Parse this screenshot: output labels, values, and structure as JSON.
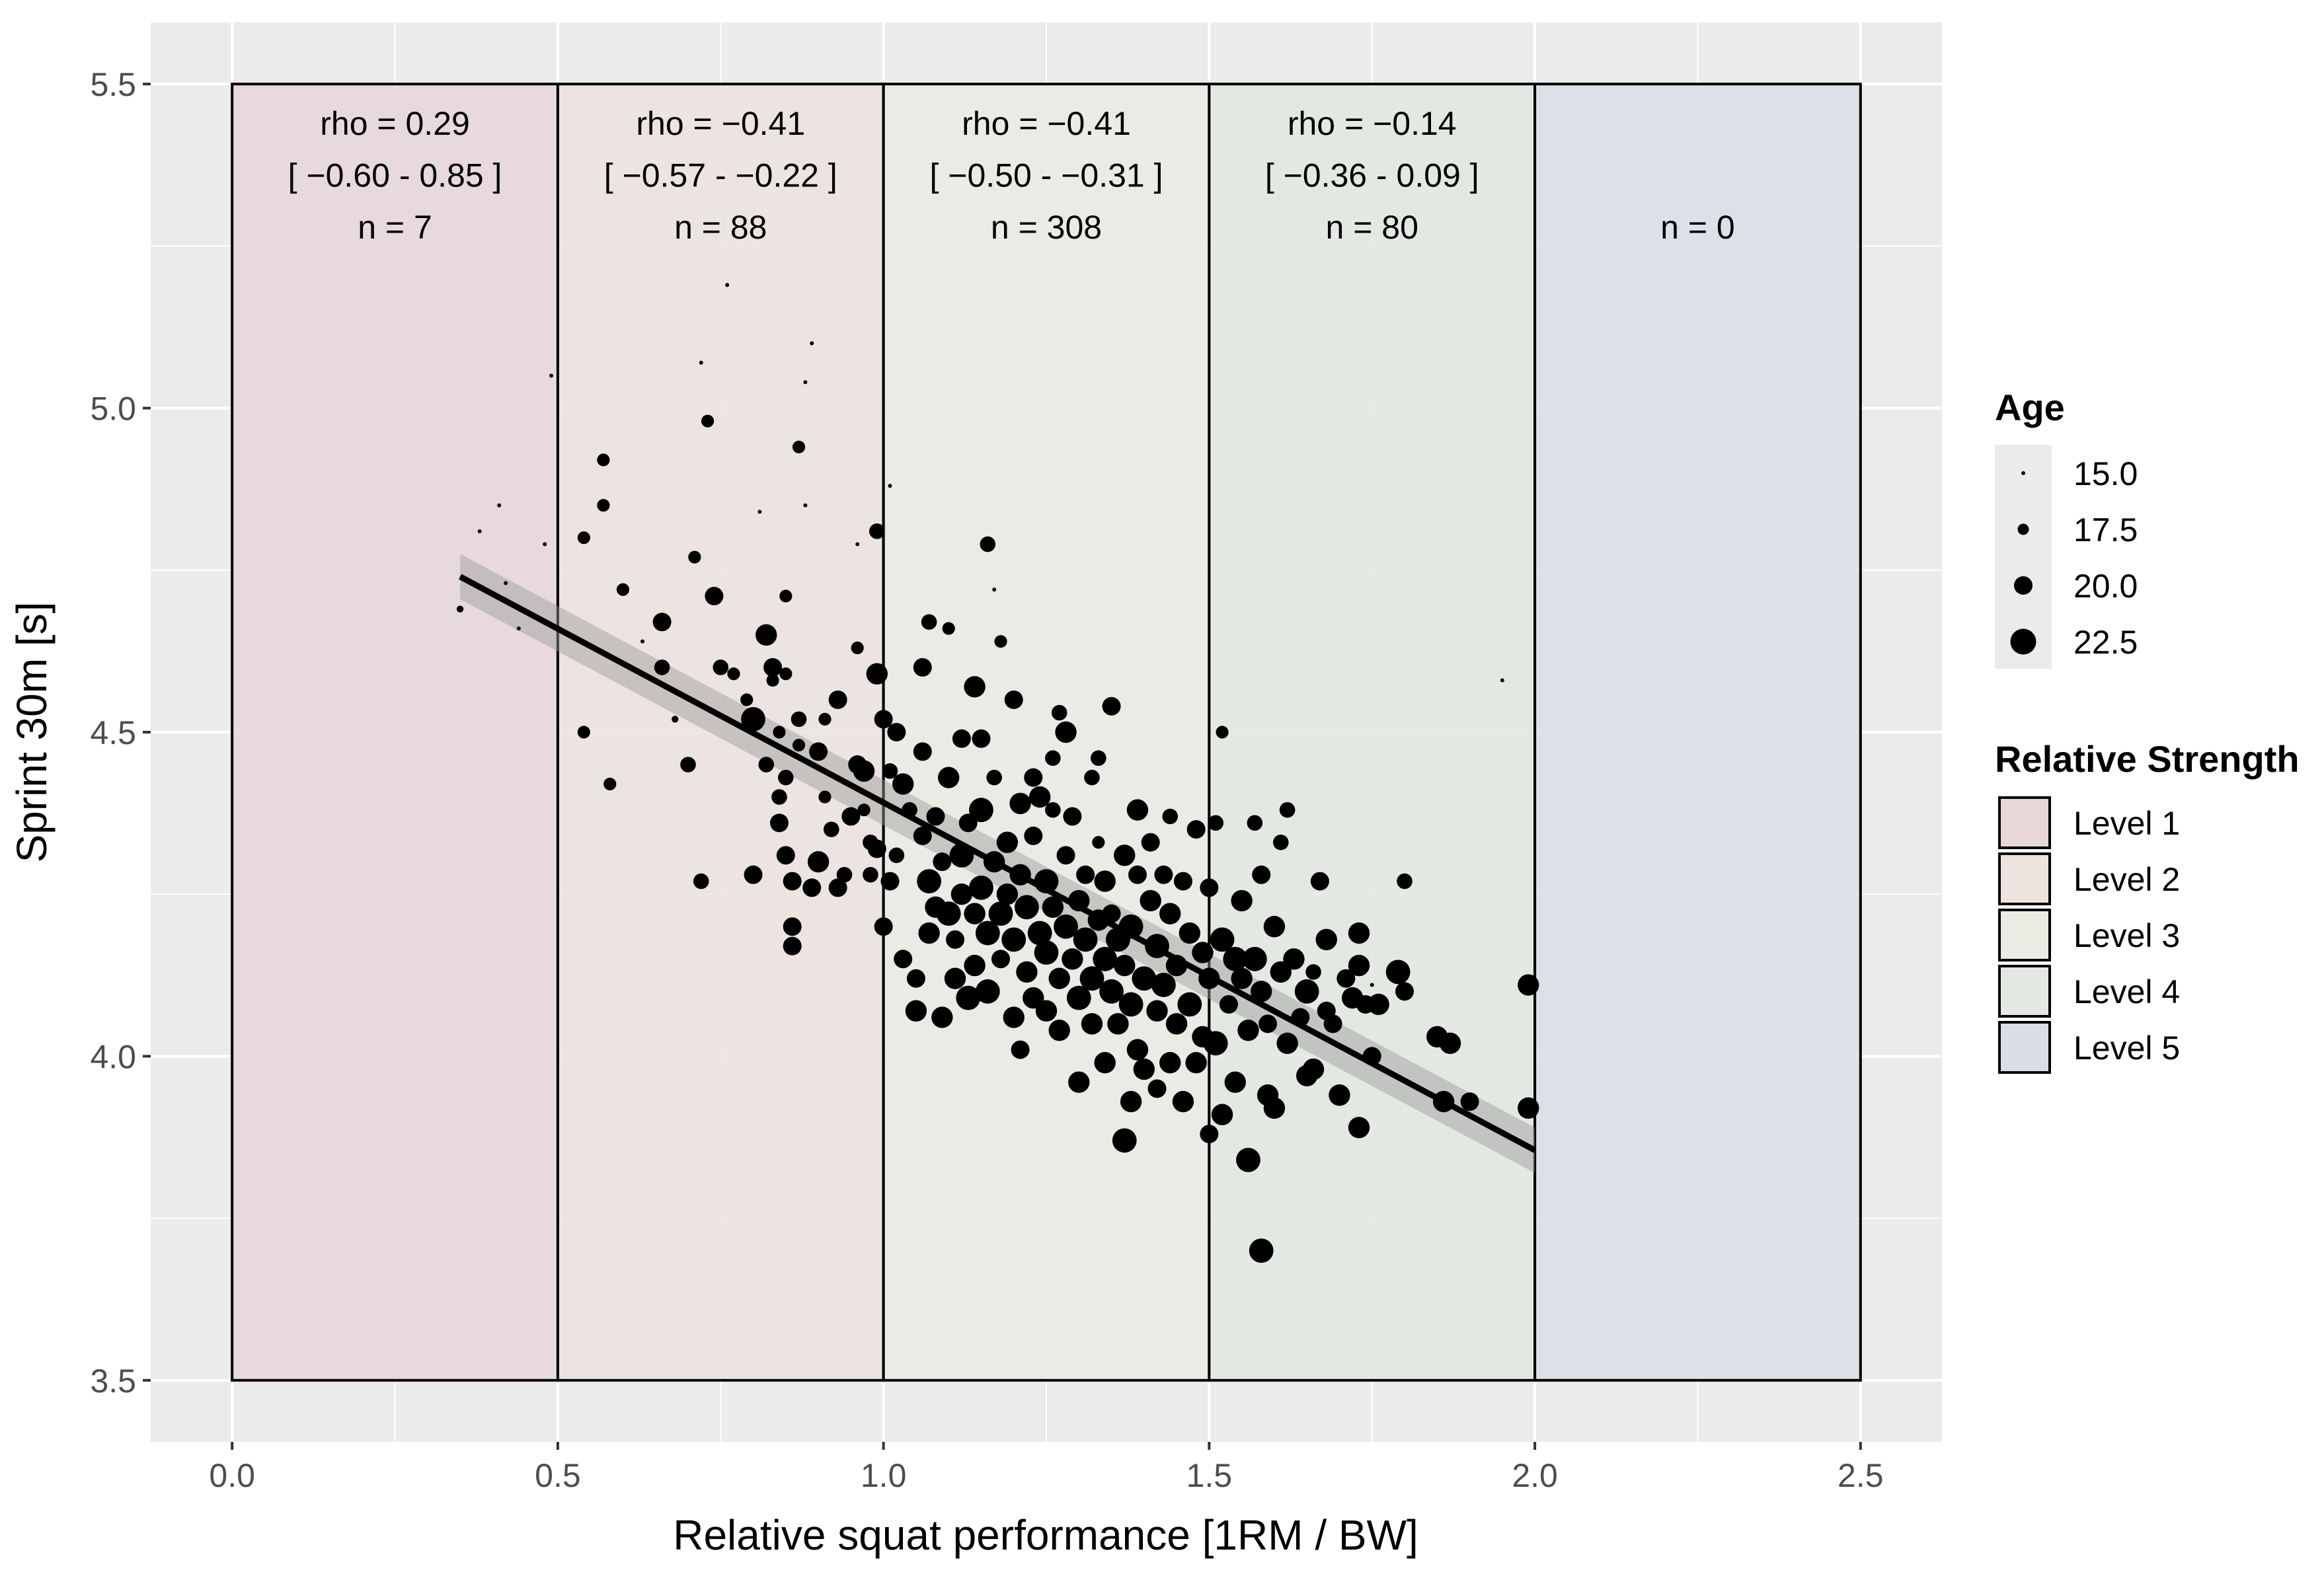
{
  "chart_data": {
    "type": "scatter",
    "xlabel": "Relative squat performance [1RM / BW]",
    "ylabel": "Sprint 30m [s]",
    "xlim": [
      -0.125,
      2.625
    ],
    "ylim": [
      3.405,
      5.595
    ],
    "x_ticks": [
      "0.0",
      "0.5",
      "1.0",
      "1.5",
      "2.0",
      "2.5"
    ],
    "x_tick_values": [
      0,
      0.5,
      1.0,
      1.5,
      2.0,
      2.5
    ],
    "y_ticks": [
      "3.5",
      "4.0",
      "4.5",
      "5.0",
      "5.5"
    ],
    "y_tick_values": [
      3.5,
      4.0,
      4.5,
      5.0,
      5.5
    ],
    "grid": true,
    "bands": [
      {
        "x0": 0.0,
        "x1": 0.5,
        "level": "Level 1",
        "color": "#e7d7d9",
        "rho": "rho =  0.29",
        "ci": "[ −0.60 - 0.85 ]",
        "n": "n =  7"
      },
      {
        "x0": 0.5,
        "x1": 1.0,
        "level": "Level 2",
        "color": "#ece3df",
        "rho": "rho =  −0.41",
        "ci": "[ −0.57 - −0.22 ]",
        "n": "n =  88"
      },
      {
        "x0": 1.0,
        "x1": 1.5,
        "level": "Level 3",
        "color": "#ebebe4",
        "rho": "rho =  −0.41",
        "ci": "[ −0.50 - −0.31 ]",
        "n": "n =  308"
      },
      {
        "x0": 1.5,
        "x1": 2.0,
        "level": "Level 4",
        "color": "#e3e8e2",
        "rho": "rho =  −0.14",
        "ci": "[ −0.36 - 0.09 ]",
        "n": "n =  80"
      },
      {
        "x0": 2.0,
        "x1": 2.5,
        "level": "Level 5",
        "color": "#d9dee6",
        "rho": "",
        "ci": "",
        "n": "n =  0"
      }
    ],
    "band_y_range": [
      3.5,
      5.5
    ],
    "regression": {
      "x0": 0.35,
      "y0": 4.74,
      "x1": 2.0,
      "y1": 3.855,
      "se": 0.035
    },
    "points": [
      [
        0.35,
        4.69,
        16
      ],
      [
        0.38,
        4.81,
        15
      ],
      [
        0.41,
        4.85,
        15
      ],
      [
        0.42,
        4.73,
        15
      ],
      [
        0.44,
        4.66,
        15
      ],
      [
        0.48,
        4.79,
        15
      ],
      [
        0.49,
        5.05,
        15
      ],
      [
        0.54,
        4.8,
        18
      ],
      [
        0.54,
        4.5,
        18
      ],
      [
        0.57,
        4.92,
        18
      ],
      [
        0.57,
        4.85,
        18
      ],
      [
        0.58,
        4.42,
        18
      ],
      [
        0.6,
        4.72,
        18
      ],
      [
        0.63,
        4.64,
        15
      ],
      [
        0.66,
        4.6,
        19
      ],
      [
        0.66,
        4.67,
        20
      ],
      [
        0.68,
        4.52,
        16
      ],
      [
        0.7,
        4.45,
        19
      ],
      [
        0.71,
        4.77,
        18
      ],
      [
        0.72,
        4.27,
        19
      ],
      [
        0.72,
        5.07,
        15
      ],
      [
        0.73,
        4.98,
        18
      ],
      [
        0.74,
        4.71,
        20
      ],
      [
        0.75,
        4.6,
        19
      ],
      [
        0.76,
        5.19,
        15
      ],
      [
        0.77,
        4.59,
        18
      ],
      [
        0.79,
        4.55,
        18
      ],
      [
        0.8,
        4.52,
        22
      ],
      [
        0.8,
        4.28,
        20
      ],
      [
        0.81,
        4.84,
        15
      ],
      [
        0.82,
        4.45,
        19
      ],
      [
        0.82,
        4.65,
        21
      ],
      [
        0.83,
        4.6,
        20
      ],
      [
        0.83,
        4.58,
        18
      ],
      [
        0.84,
        4.5,
        18
      ],
      [
        0.84,
        4.4,
        19
      ],
      [
        0.84,
        4.36,
        20
      ],
      [
        0.85,
        4.71,
        18
      ],
      [
        0.85,
        4.59,
        18
      ],
      [
        0.85,
        4.43,
        19
      ],
      [
        0.85,
        4.31,
        20
      ],
      [
        0.86,
        4.27,
        20
      ],
      [
        0.86,
        4.2,
        20
      ],
      [
        0.86,
        4.17,
        20
      ],
      [
        0.87,
        4.94,
        18
      ],
      [
        0.87,
        4.52,
        19
      ],
      [
        0.87,
        4.48,
        18
      ],
      [
        0.88,
        4.85,
        15
      ],
      [
        0.88,
        5.04,
        15
      ],
      [
        0.89,
        5.1,
        15
      ],
      [
        0.89,
        4.26,
        20
      ],
      [
        0.9,
        4.3,
        21
      ],
      [
        0.9,
        4.47,
        20
      ],
      [
        0.91,
        4.52,
        18
      ],
      [
        0.91,
        4.4,
        18
      ],
      [
        0.92,
        4.35,
        19
      ],
      [
        0.93,
        4.55,
        20
      ],
      [
        0.93,
        4.26,
        20
      ],
      [
        0.94,
        4.28,
        19
      ],
      [
        0.95,
        4.37,
        20
      ],
      [
        0.96,
        4.79,
        15
      ],
      [
        0.96,
        4.45,
        20
      ],
      [
        0.96,
        4.63,
        18
      ],
      [
        0.97,
        4.44,
        21
      ],
      [
        0.97,
        4.38,
        18
      ],
      [
        0.98,
        4.28,
        19
      ],
      [
        0.98,
        4.33,
        19
      ],
      [
        0.99,
        4.81,
        19
      ],
      [
        0.99,
        4.59,
        21
      ],
      [
        0.99,
        4.32,
        20
      ],
      [
        1.0,
        4.52,
        20
      ],
      [
        1.0,
        4.2,
        20
      ],
      [
        1.01,
        4.88,
        15
      ],
      [
        1.01,
        4.44,
        19
      ],
      [
        1.01,
        4.27,
        20
      ],
      [
        1.02,
        4.31,
        19
      ],
      [
        1.02,
        4.5,
        20
      ],
      [
        1.03,
        4.15,
        20
      ],
      [
        1.03,
        4.42,
        21
      ],
      [
        1.04,
        4.38,
        19
      ],
      [
        1.05,
        4.07,
        21
      ],
      [
        1.05,
        4.12,
        20
      ],
      [
        1.06,
        4.6,
        20
      ],
      [
        1.06,
        4.47,
        20
      ],
      [
        1.06,
        4.34,
        20
      ],
      [
        1.07,
        4.67,
        19
      ],
      [
        1.07,
        4.27,
        22
      ],
      [
        1.07,
        4.19,
        21
      ],
      [
        1.08,
        4.37,
        20
      ],
      [
        1.08,
        4.23,
        21
      ],
      [
        1.09,
        4.06,
        21
      ],
      [
        1.09,
        4.3,
        20
      ],
      [
        1.1,
        4.66,
        18
      ],
      [
        1.1,
        4.43,
        21
      ],
      [
        1.1,
        4.22,
        22
      ],
      [
        1.11,
        4.18,
        20
      ],
      [
        1.11,
        4.12,
        21
      ],
      [
        1.12,
        4.49,
        20
      ],
      [
        1.12,
        4.31,
        22
      ],
      [
        1.12,
        4.25,
        21
      ],
      [
        1.13,
        4.09,
        22
      ],
      [
        1.13,
        4.36,
        20
      ],
      [
        1.14,
        4.57,
        21
      ],
      [
        1.14,
        4.22,
        21
      ],
      [
        1.14,
        4.14,
        21
      ],
      [
        1.15,
        4.49,
        20
      ],
      [
        1.15,
        4.26,
        22
      ],
      [
        1.15,
        4.38,
        22
      ],
      [
        1.16,
        4.79,
        19
      ],
      [
        1.16,
        4.1,
        22
      ],
      [
        1.16,
        4.19,
        22
      ],
      [
        1.17,
        4.3,
        21
      ],
      [
        1.17,
        4.72,
        15
      ],
      [
        1.17,
        4.43,
        19
      ],
      [
        1.18,
        4.64,
        18
      ],
      [
        1.18,
        4.22,
        22
      ],
      [
        1.18,
        4.15,
        20
      ],
      [
        1.19,
        4.33,
        21
      ],
      [
        1.19,
        4.25,
        21
      ],
      [
        1.2,
        4.55,
        20
      ],
      [
        1.2,
        4.18,
        22
      ],
      [
        1.2,
        4.06,
        21
      ],
      [
        1.21,
        4.01,
        20
      ],
      [
        1.21,
        4.39,
        21
      ],
      [
        1.21,
        4.28,
        21
      ],
      [
        1.22,
        4.13,
        21
      ],
      [
        1.22,
        4.23,
        22
      ],
      [
        1.23,
        4.43,
        20
      ],
      [
        1.23,
        4.09,
        21
      ],
      [
        1.23,
        4.34,
        20
      ],
      [
        1.24,
        4.4,
        21
      ],
      [
        1.24,
        4.19,
        22
      ],
      [
        1.25,
        4.07,
        21
      ],
      [
        1.25,
        4.27,
        22
      ],
      [
        1.25,
        4.16,
        22
      ],
      [
        1.26,
        4.38,
        19
      ],
      [
        1.26,
        4.46,
        19
      ],
      [
        1.26,
        4.23,
        21
      ],
      [
        1.27,
        4.12,
        21
      ],
      [
        1.27,
        4.04,
        21
      ],
      [
        1.27,
        4.53,
        19
      ],
      [
        1.28,
        4.5,
        21
      ],
      [
        1.28,
        4.2,
        22
      ],
      [
        1.28,
        4.31,
        20
      ],
      [
        1.29,
        4.15,
        21
      ],
      [
        1.29,
        4.37,
        20
      ],
      [
        1.3,
        4.09,
        22
      ],
      [
        1.3,
        4.24,
        21
      ],
      [
        1.3,
        3.96,
        21
      ],
      [
        1.31,
        4.18,
        22
      ],
      [
        1.31,
        4.28,
        20
      ],
      [
        1.32,
        4.12,
        22
      ],
      [
        1.32,
        4.05,
        21
      ],
      [
        1.32,
        4.43,
        19
      ],
      [
        1.33,
        4.21,
        21
      ],
      [
        1.33,
        4.46,
        19
      ],
      [
        1.33,
        4.33,
        18
      ],
      [
        1.34,
        4.15,
        22
      ],
      [
        1.34,
        3.99,
        21
      ],
      [
        1.34,
        4.27,
        21
      ],
      [
        1.35,
        4.1,
        22
      ],
      [
        1.35,
        4.22,
        20
      ],
      [
        1.35,
        4.54,
        20
      ],
      [
        1.36,
        4.05,
        21
      ],
      [
        1.36,
        4.18,
        22
      ],
      [
        1.37,
        3.87,
        22
      ],
      [
        1.37,
        4.31,
        21
      ],
      [
        1.37,
        4.14,
        21
      ],
      [
        1.38,
        3.93,
        21
      ],
      [
        1.38,
        4.08,
        22
      ],
      [
        1.38,
        4.2,
        22
      ],
      [
        1.39,
        4.38,
        21
      ],
      [
        1.39,
        4.01,
        21
      ],
      [
        1.39,
        4.28,
        20
      ],
      [
        1.4,
        4.12,
        22
      ],
      [
        1.4,
        3.98,
        21
      ],
      [
        1.41,
        4.24,
        21
      ],
      [
        1.41,
        4.33,
        20
      ],
      [
        1.42,
        4.07,
        21
      ],
      [
        1.42,
        4.17,
        22
      ],
      [
        1.42,
        3.95,
        20
      ],
      [
        1.43,
        4.28,
        20
      ],
      [
        1.43,
        4.11,
        22
      ],
      [
        1.44,
        4.37,
        19
      ],
      [
        1.44,
        3.99,
        21
      ],
      [
        1.44,
        4.22,
        21
      ],
      [
        1.45,
        4.05,
        21
      ],
      [
        1.45,
        4.14,
        21
      ],
      [
        1.46,
        3.93,
        21
      ],
      [
        1.46,
        4.27,
        20
      ],
      [
        1.47,
        4.19,
        21
      ],
      [
        1.47,
        4.08,
        22
      ],
      [
        1.48,
        3.99,
        21
      ],
      [
        1.48,
        4.35,
        20
      ],
      [
        1.49,
        4.16,
        21
      ],
      [
        1.49,
        4.03,
        21
      ],
      [
        1.5,
        3.88,
        20
      ],
      [
        1.5,
        4.12,
        21
      ],
      [
        1.5,
        4.26,
        20
      ],
      [
        1.51,
        4.36,
        19
      ],
      [
        1.51,
        4.02,
        22
      ],
      [
        1.52,
        4.5,
        18
      ],
      [
        1.52,
        4.18,
        22
      ],
      [
        1.52,
        3.91,
        21
      ],
      [
        1.53,
        4.08,
        20
      ],
      [
        1.54,
        4.15,
        22
      ],
      [
        1.54,
        3.96,
        21
      ],
      [
        1.55,
        4.24,
        21
      ],
      [
        1.55,
        4.12,
        21
      ],
      [
        1.56,
        4.04,
        21
      ],
      [
        1.56,
        3.84,
        22
      ],
      [
        1.57,
        4.36,
        19
      ],
      [
        1.57,
        4.15,
        22
      ],
      [
        1.58,
        3.7,
        22
      ],
      [
        1.58,
        4.1,
        21
      ],
      [
        1.58,
        4.28,
        20
      ],
      [
        1.59,
        3.94,
        21
      ],
      [
        1.59,
        4.05,
        20
      ],
      [
        1.6,
        4.2,
        21
      ],
      [
        1.6,
        3.92,
        21
      ],
      [
        1.61,
        4.13,
        21
      ],
      [
        1.61,
        4.33,
        19
      ],
      [
        1.62,
        4.38,
        19
      ],
      [
        1.62,
        4.02,
        21
      ],
      [
        1.63,
        4.15,
        21
      ],
      [
        1.64,
        4.06,
        20
      ],
      [
        1.65,
        4.1,
        22
      ],
      [
        1.65,
        3.97,
        21
      ],
      [
        1.66,
        4.13,
        19
      ],
      [
        1.66,
        3.98,
        21
      ],
      [
        1.67,
        4.27,
        20
      ],
      [
        1.68,
        4.07,
        20
      ],
      [
        1.68,
        4.18,
        21
      ],
      [
        1.69,
        4.05,
        20
      ],
      [
        1.7,
        3.94,
        21
      ],
      [
        1.71,
        4.12,
        20
      ],
      [
        1.72,
        4.09,
        21
      ],
      [
        1.73,
        4.19,
        21
      ],
      [
        1.73,
        4.14,
        21
      ],
      [
        1.73,
        3.89,
        21
      ],
      [
        1.74,
        4.08,
        20
      ],
      [
        1.75,
        4.0,
        20
      ],
      [
        1.75,
        4.11,
        15
      ],
      [
        1.76,
        4.08,
        21
      ],
      [
        1.79,
        4.13,
        22
      ],
      [
        1.8,
        4.27,
        19
      ],
      [
        1.8,
        4.1,
        20
      ],
      [
        1.85,
        4.03,
        21
      ],
      [
        1.86,
        3.93,
        21
      ],
      [
        1.87,
        4.02,
        21
      ],
      [
        1.9,
        3.93,
        20
      ],
      [
        1.95,
        4.58,
        15
      ],
      [
        1.99,
        4.11,
        21
      ],
      [
        1.99,
        3.92,
        21
      ]
    ],
    "legend": {
      "age_title": "Age",
      "age_entries": [
        {
          "label": "15.0",
          "value": 15.0
        },
        {
          "label": "17.5",
          "value": 17.5
        },
        {
          "label": "20.0",
          "value": 20.0
        },
        {
          "label": "22.5",
          "value": 22.5
        }
      ],
      "strength_title": "Relative Strength",
      "strength_entries": [
        {
          "label": "Level 1",
          "color": "#e7d7d9"
        },
        {
          "label": "Level 2",
          "color": "#ece3df"
        },
        {
          "label": "Level 3",
          "color": "#ebebe4"
        },
        {
          "label": "Level 4",
          "color": "#e3e8e2"
        },
        {
          "label": "Level 5",
          "color": "#d9dee6"
        }
      ],
      "placement": "right"
    }
  }
}
